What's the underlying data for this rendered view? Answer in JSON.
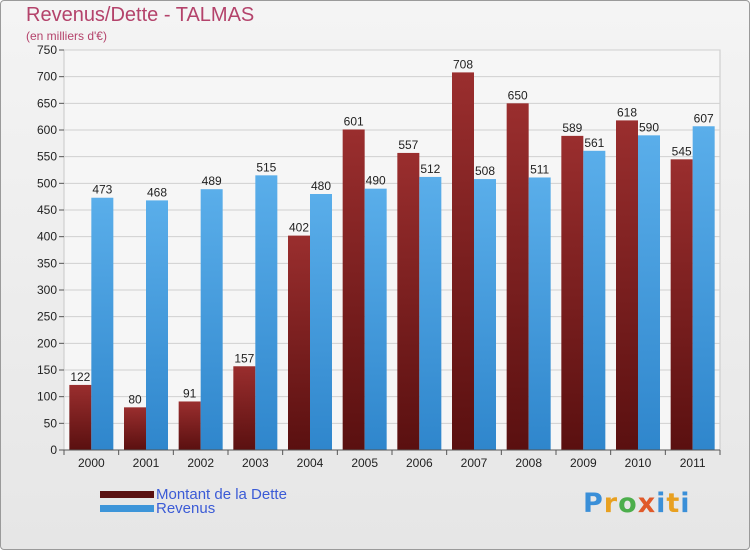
{
  "header": {
    "title": "Revenus/Dette - TALMAS",
    "subtitle": "(en milliers d'€)"
  },
  "legend": {
    "debt_label": "Montant de la Dette",
    "revenue_label": "Revenus"
  },
  "logo": {
    "letters": [
      "P",
      "r",
      "o",
      "x",
      "i",
      "t",
      "i"
    ],
    "colors": [
      "#3a8fd8",
      "#e8a020",
      "#4cae4c",
      "#e05a2a",
      "#3a8fd8",
      "#e8a020",
      "#3a8fd8"
    ]
  },
  "colors": {
    "debt": "#7a1f1f",
    "debt_light": "#a03535",
    "revenue": "#3d95d9",
    "revenue_light": "#62b4ee",
    "title": "#b4436b",
    "legend_text": "#3b5bd6"
  },
  "chart_data": {
    "type": "bar",
    "categories": [
      "2000",
      "2001",
      "2002",
      "2003",
      "2004",
      "2005",
      "2006",
      "2007",
      "2008",
      "2009",
      "2010",
      "2011"
    ],
    "series": [
      {
        "name": "Montant de la Dette",
        "values": [
          122,
          80,
          91,
          157,
          402,
          601,
          557,
          708,
          650,
          589,
          618,
          545
        ]
      },
      {
        "name": "Revenus",
        "values": [
          473,
          468,
          489,
          515,
          480,
          490,
          512,
          508,
          511,
          561,
          590,
          607
        ]
      }
    ],
    "ylim": [
      0,
      750
    ],
    "yticks": [
      0,
      50,
      100,
      150,
      200,
      250,
      300,
      350,
      400,
      450,
      500,
      550,
      600,
      650,
      700,
      750
    ],
    "grid": true,
    "legend_position": "bottom-left"
  }
}
